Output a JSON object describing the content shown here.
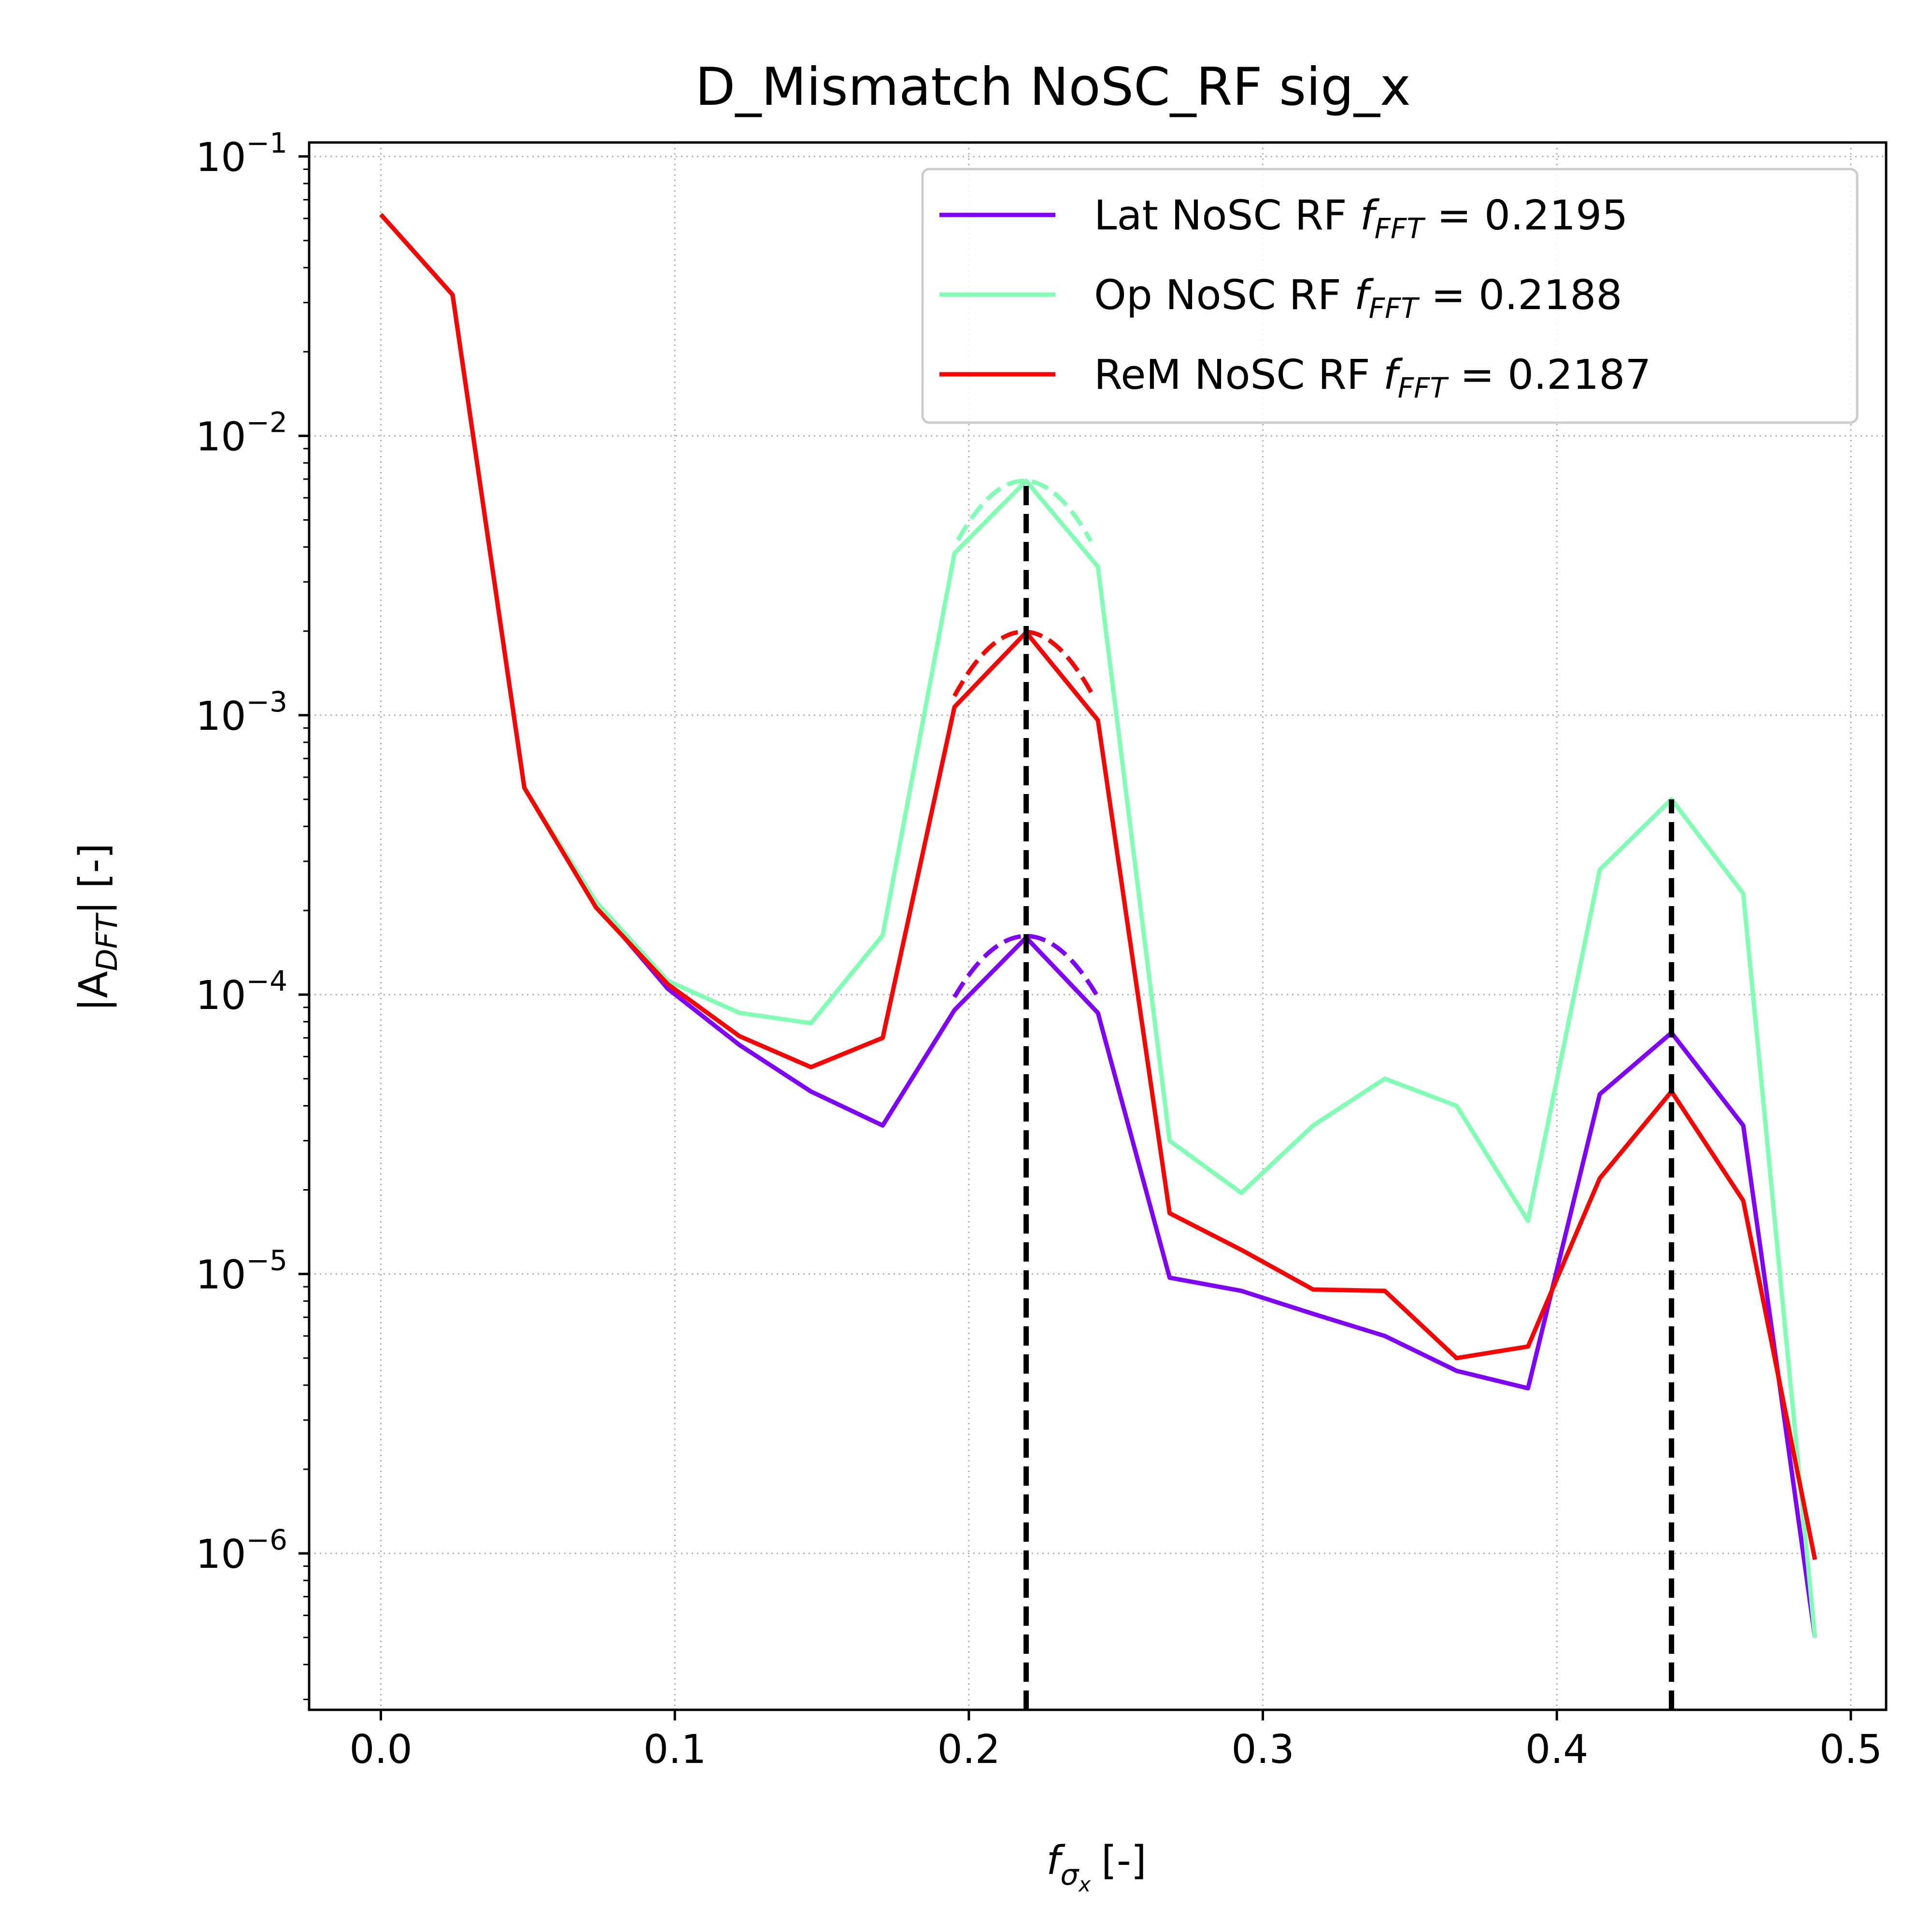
{
  "chart_data": {
    "type": "line",
    "title": "D_Mismatch NoSC_RF sig_x",
    "xlabel": {
      "main": "f",
      "sub": "σ",
      "subsub": "x",
      "unit": "[-]"
    },
    "ylabel": {
      "prefix": "|A",
      "sub": "DFT",
      "suffix": "| [-]"
    },
    "xlim": [
      -0.0244,
      0.512
    ],
    "ylim_log10": [
      -6.56,
      -0.95
    ],
    "yscale": "log",
    "grid": true,
    "x_ticks": [
      0.0,
      0.1,
      0.2,
      0.3,
      0.4,
      0.5
    ],
    "x_tick_labels": [
      "0.0",
      "0.1",
      "0.2",
      "0.3",
      "0.4",
      "0.5"
    ],
    "y_ticks": [
      {
        "base": "10",
        "exp": "−1",
        "value": 0.1
      },
      {
        "base": "10",
        "exp": "−2",
        "value": 0.01
      },
      {
        "base": "10",
        "exp": "−3",
        "value": 0.001
      },
      {
        "base": "10",
        "exp": "−4",
        "value": 0.0001
      },
      {
        "base": "10",
        "exp": "−5",
        "value": 1e-05
      },
      {
        "base": "10",
        "exp": "−6",
        "value": 1e-06
      }
    ],
    "x": [
      0.0,
      0.0244,
      0.0488,
      0.0732,
      0.0976,
      0.122,
      0.1463,
      0.1707,
      0.1951,
      0.2195,
      0.2439,
      0.2683,
      0.2927,
      0.3171,
      0.3415,
      0.3659,
      0.3902,
      0.4146,
      0.439,
      0.4634,
      0.4878
    ],
    "series": [
      {
        "name": "Lat NoSC RF",
        "legend_value": "0.2195",
        "color": "#8000ff",
        "values": [
          0.062,
          0.032,
          0.00055,
          0.00021,
          0.000105,
          6.6e-05,
          4.5e-05,
          3.4e-05,
          8.8e-05,
          0.00016,
          8.6e-05,
          9.7e-06,
          8.7e-06,
          7.2e-06,
          6e-06,
          4.5e-06,
          3.9e-06,
          4.4e-05,
          7.3e-05,
          3.4e-05,
          5e-07
        ],
        "fit": {
          "center": 0.2195,
          "peak": 0.000162,
          "x_start": 0.1951,
          "x_end": 0.2439,
          "y_start": 9.8e-05,
          "y_end": 9.8e-05
        }
      },
      {
        "name": "Op NoSC RF",
        "legend_value": "0.2188",
        "color": "#80ffb4",
        "values": [
          0.062,
          0.032,
          0.00055,
          0.000215,
          0.000112,
          8.6e-05,
          7.9e-05,
          0.000163,
          0.0038,
          0.0069,
          0.0034,
          3e-05,
          1.95e-05,
          3.4e-05,
          5e-05,
          4e-05,
          1.55e-05,
          0.00028,
          0.0005,
          0.00023,
          5e-07
        ],
        "fit": {
          "center": 0.2188,
          "peak": 0.0069,
          "x_start": 0.1963,
          "x_end": 0.2415,
          "y_start": 0.0042,
          "y_end": 0.0042
        }
      },
      {
        "name": "ReM NoSC RF",
        "legend_value": "0.2187",
        "color": "#ff0000",
        "values": [
          0.062,
          0.032,
          0.00055,
          0.000205,
          0.000109,
          7.1e-05,
          5.5e-05,
          7e-05,
          0.00107,
          0.00198,
          0.00096,
          1.65e-05,
          1.22e-05,
          8.8e-06,
          8.7e-06,
          5e-06,
          5.5e-06,
          2.2e-05,
          4.5e-05,
          1.83e-05,
          9.5e-07
        ],
        "fit": {
          "center": 0.2187,
          "peak": 0.00199,
          "x_start": 0.1951,
          "x_end": 0.2427,
          "y_start": 0.00115,
          "y_end": 0.00115
        }
      }
    ],
    "vlines": [
      0.2195,
      0.439
    ],
    "legend": {
      "location": "top-right",
      "prefix_label": "f",
      "prefix_sub": "FFT",
      "equals": " =  "
    }
  }
}
